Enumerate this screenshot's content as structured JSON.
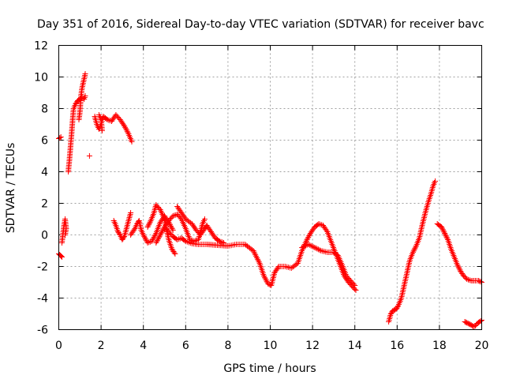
{
  "chart_data": {
    "type": "scatter",
    "title": "Day 351 of 2016, Sidereal Day-to-day VTEC variation (SDTVAR) for receiver bavc",
    "xlabel": "GPS time / hours",
    "ylabel": "SDTVAR / TECUs",
    "xlim": [
      0,
      20
    ],
    "ylim": [
      -6,
      12
    ],
    "xticks": [
      0,
      2,
      4,
      6,
      8,
      10,
      12,
      14,
      16,
      18,
      20
    ],
    "yticks": [
      -6,
      -4,
      -2,
      0,
      2,
      4,
      6,
      8,
      10,
      12
    ],
    "grid": true,
    "marker": "+",
    "series": [
      {
        "name": "SDTVAR",
        "color": "#ff0000",
        "segments": [
          [
            [
              0.0,
              6.1
            ],
            [
              0.1,
              6.2
            ]
          ],
          [
            [
              0.0,
              -1.2
            ],
            [
              0.08,
              -1.3
            ],
            [
              0.15,
              -1.4
            ]
          ],
          [
            [
              0.15,
              -0.5
            ],
            [
              0.2,
              0.1
            ],
            [
              0.25,
              0.6
            ],
            [
              0.3,
              1.0
            ],
            [
              0.35,
              0.4
            ],
            [
              0.3,
              0.0
            ]
          ],
          [
            [
              0.45,
              4.0
            ],
            [
              0.5,
              4.7
            ],
            [
              0.55,
              5.5
            ],
            [
              0.6,
              6.3
            ],
            [
              0.65,
              7.2
            ],
            [
              0.7,
              8.0
            ],
            [
              0.8,
              8.3
            ],
            [
              0.9,
              8.5
            ],
            [
              1.0,
              8.6
            ],
            [
              1.1,
              8.7
            ],
            [
              1.2,
              8.6
            ],
            [
              1.25,
              8.8
            ]
          ],
          [
            [
              0.95,
              7.3
            ],
            [
              1.0,
              7.8
            ],
            [
              1.05,
              8.8
            ],
            [
              1.1,
              9.3
            ],
            [
              1.15,
              9.6
            ],
            [
              1.2,
              9.9
            ],
            [
              1.25,
              10.2
            ]
          ],
          [
            [
              1.45,
              5.0
            ]
          ],
          [
            [
              1.7,
              7.5
            ],
            [
              1.8,
              7.0
            ],
            [
              1.9,
              6.7
            ],
            [
              2.0,
              7.0
            ],
            [
              2.1,
              7.5
            ],
            [
              2.3,
              7.3
            ],
            [
              2.5,
              7.2
            ],
            [
              2.7,
              7.6
            ],
            [
              2.9,
              7.3
            ],
            [
              3.1,
              6.9
            ],
            [
              3.3,
              6.4
            ],
            [
              3.45,
              5.9
            ]
          ],
          [
            [
              1.9,
              7.6
            ],
            [
              2.0,
              7.3
            ],
            [
              2.05,
              6.6
            ]
          ],
          [
            [
              2.6,
              0.9
            ],
            [
              2.7,
              0.6
            ],
            [
              2.8,
              0.2
            ],
            [
              2.9,
              0.0
            ],
            [
              3.0,
              -0.3
            ],
            [
              3.1,
              -0.1
            ],
            [
              3.2,
              0.4
            ],
            [
              3.3,
              0.9
            ],
            [
              3.4,
              1.4
            ]
          ],
          [
            [
              3.4,
              0.0
            ],
            [
              3.6,
              0.4
            ],
            [
              3.7,
              0.7
            ],
            [
              3.8,
              0.9
            ],
            [
              3.9,
              0.3
            ],
            [
              4.0,
              0.0
            ],
            [
              4.2,
              -0.5
            ],
            [
              4.4,
              -0.4
            ],
            [
              4.6,
              0.1
            ],
            [
              4.8,
              0.8
            ],
            [
              5.0,
              1.2
            ],
            [
              5.2,
              0.8
            ],
            [
              5.4,
              0.3
            ]
          ],
          [
            [
              4.2,
              0.5
            ],
            [
              4.35,
              0.9
            ],
            [
              4.5,
              1.4
            ],
            [
              4.6,
              1.9
            ],
            [
              4.8,
              1.6
            ],
            [
              5.0,
              1.0
            ],
            [
              5.1,
              0.3
            ],
            [
              5.2,
              -0.3
            ],
            [
              5.35,
              -0.9
            ],
            [
              5.5,
              -1.2
            ]
          ],
          [
            [
              4.6,
              -0.5
            ],
            [
              4.8,
              0.0
            ],
            [
              5.0,
              0.5
            ],
            [
              5.2,
              0.9
            ],
            [
              5.4,
              1.2
            ],
            [
              5.6,
              1.3
            ],
            [
              5.8,
              1.0
            ],
            [
              6.0,
              0.4
            ],
            [
              6.2,
              -0.3
            ],
            [
              6.4,
              -0.4
            ],
            [
              6.6,
              -0.3
            ],
            [
              6.7,
              0.2
            ],
            [
              6.8,
              0.7
            ],
            [
              6.9,
              1.0
            ]
          ],
          [
            [
              5.6,
              1.8
            ],
            [
              5.8,
              1.4
            ],
            [
              6.0,
              1.0
            ],
            [
              6.3,
              0.7
            ],
            [
              6.5,
              0.3
            ],
            [
              6.7,
              0.0
            ],
            [
              6.9,
              0.4
            ],
            [
              7.0,
              0.6
            ],
            [
              7.2,
              0.2
            ],
            [
              7.4,
              -0.2
            ],
            [
              7.6,
              -0.4
            ],
            [
              7.8,
              -0.5
            ]
          ],
          [
            [
              5.0,
              0.5
            ],
            [
              5.2,
              0.2
            ],
            [
              5.4,
              -0.1
            ],
            [
              5.6,
              -0.3
            ],
            [
              5.8,
              -0.2
            ],
            [
              6.0,
              -0.4
            ],
            [
              6.3,
              -0.55
            ],
            [
              6.6,
              -0.6
            ],
            [
              7.0,
              -0.6
            ],
            [
              7.5,
              -0.65
            ],
            [
              8.0,
              -0.7
            ],
            [
              8.4,
              -0.6
            ],
            [
              8.8,
              -0.6
            ],
            [
              9.2,
              -1.0
            ],
            [
              9.5,
              -1.8
            ],
            [
              9.7,
              -2.6
            ],
            [
              9.9,
              -3.1
            ],
            [
              10.05,
              -3.2
            ],
            [
              10.2,
              -2.4
            ],
            [
              10.4,
              -2.0
            ],
            [
              10.7,
              -2.0
            ],
            [
              11.0,
              -2.1
            ],
            [
              11.3,
              -1.8
            ],
            [
              11.5,
              -1.0
            ],
            [
              11.7,
              -0.4
            ],
            [
              11.9,
              0.1
            ],
            [
              12.1,
              0.5
            ],
            [
              12.3,
              0.7
            ],
            [
              12.5,
              0.6
            ],
            [
              12.7,
              0.2
            ],
            [
              12.9,
              -0.5
            ],
            [
              13.1,
              -1.2
            ],
            [
              13.3,
              -1.9
            ],
            [
              13.5,
              -2.6
            ],
            [
              13.7,
              -3.0
            ],
            [
              13.9,
              -3.3
            ],
            [
              14.05,
              -3.5
            ]
          ],
          [
            [
              11.5,
              -0.8
            ],
            [
              11.8,
              -0.6
            ],
            [
              12.1,
              -0.8
            ],
            [
              12.4,
              -1.0
            ],
            [
              12.7,
              -1.1
            ],
            [
              13.0,
              -1.1
            ],
            [
              13.2,
              -1.3
            ],
            [
              13.4,
              -1.9
            ],
            [
              13.6,
              -2.6
            ],
            [
              13.8,
              -2.9
            ],
            [
              14.0,
              -3.2
            ]
          ],
          [
            [
              15.6,
              -5.5
            ],
            [
              15.7,
              -5.0
            ],
            [
              15.8,
              -4.8
            ],
            [
              15.95,
              -4.7
            ],
            [
              16.05,
              -4.5
            ],
            [
              16.2,
              -4.0
            ],
            [
              16.3,
              -3.4
            ],
            [
              16.45,
              -2.5
            ],
            [
              16.6,
              -1.6
            ],
            [
              16.75,
              -1.1
            ],
            [
              16.9,
              -0.7
            ],
            [
              17.05,
              -0.2
            ],
            [
              17.2,
              0.7
            ],
            [
              17.35,
              1.5
            ],
            [
              17.5,
              2.2
            ],
            [
              17.6,
              2.6
            ],
            [
              17.7,
              3.1
            ],
            [
              17.8,
              3.4
            ]
          ],
          [
            [
              17.9,
              0.7
            ],
            [
              18.0,
              0.6
            ],
            [
              18.1,
              0.5
            ],
            [
              18.25,
              0.1
            ],
            [
              18.4,
              -0.3
            ],
            [
              18.55,
              -0.9
            ],
            [
              18.7,
              -1.4
            ],
            [
              18.85,
              -1.9
            ],
            [
              19.0,
              -2.3
            ],
            [
              19.15,
              -2.6
            ],
            [
              19.3,
              -2.8
            ],
            [
              19.5,
              -2.9
            ],
            [
              19.7,
              -2.9
            ],
            [
              19.85,
              -2.9
            ],
            [
              20.0,
              -3.0
            ]
          ],
          [
            [
              19.2,
              -5.5
            ],
            [
              19.35,
              -5.6
            ],
            [
              19.5,
              -5.7
            ],
            [
              19.6,
              -5.8
            ],
            [
              19.7,
              -5.75
            ],
            [
              19.8,
              -5.6
            ],
            [
              19.9,
              -5.5
            ],
            [
              20.0,
              -5.4
            ]
          ]
        ]
      }
    ]
  }
}
